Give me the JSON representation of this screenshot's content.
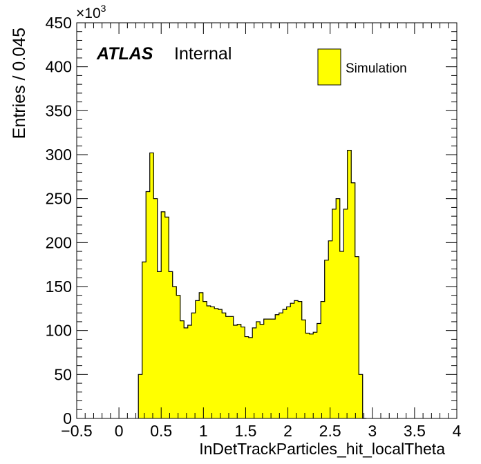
{
  "chart_data": {
    "type": "bar",
    "xlabel": "InDetTrackParticles_hit_localTheta",
    "ylabel": "Entries / 0.045",
    "y_multiplier": "×10",
    "y_multiplier_exp": "3",
    "xlim": [
      -0.5,
      4.0
    ],
    "ylim": [
      0,
      450
    ],
    "bin_width": 0.045,
    "x_ticks": [
      -0.5,
      0,
      0.5,
      1,
      1.5,
      2,
      2.5,
      3,
      3.5,
      4
    ],
    "x_tick_labels": [
      "−0.5",
      "0",
      "0.5",
      "1",
      "1.5",
      "2",
      "2.5",
      "3",
      "3.5",
      "4"
    ],
    "y_ticks": [
      0,
      50,
      100,
      150,
      200,
      250,
      300,
      350,
      400,
      450
    ],
    "y_tick_labels": [
      "0",
      "50",
      "100",
      "150",
      "200",
      "250",
      "300",
      "350",
      "400",
      "450"
    ],
    "grid": false,
    "legend_position": "top-right",
    "series": [
      {
        "name": "Simulation",
        "color": "#ffff00",
        "edge_color": "#000000",
        "bin_starts": [
          0.23,
          0.275,
          0.32,
          0.365,
          0.41,
          0.455,
          0.5,
          0.545,
          0.59,
          0.635,
          0.68,
          0.725,
          0.77,
          0.815,
          0.86,
          0.905,
          0.95,
          0.995,
          1.04,
          1.085,
          1.13,
          1.175,
          1.22,
          1.265,
          1.31,
          1.355,
          1.4,
          1.445,
          1.49,
          1.535,
          1.58,
          1.625,
          1.67,
          1.715,
          1.76,
          1.805,
          1.85,
          1.895,
          1.94,
          1.985,
          2.03,
          2.075,
          2.12,
          2.165,
          2.21,
          2.255,
          2.3,
          2.345,
          2.39,
          2.435,
          2.48,
          2.525,
          2.57,
          2.615,
          2.66,
          2.705,
          2.75,
          2.795,
          2.84,
          2.885
        ],
        "values": [
          50,
          178,
          258,
          302,
          250,
          167,
          235,
          229,
          167,
          150,
          140,
          111,
          103,
          106,
          120,
          134,
          143,
          133,
          128,
          127,
          125,
          124,
          120,
          116,
          116,
          106,
          107,
          104,
          93,
          92,
          103,
          110,
          107,
          113,
          113,
          113,
          118,
          120,
          124,
          127,
          131,
          134,
          133,
          112,
          97,
          96,
          98,
          108,
          133,
          180,
          202,
          238,
          250,
          190,
          238,
          305,
          268,
          184,
          50,
          0
        ]
      }
    ]
  },
  "labels": {
    "atlas": "ATLAS",
    "internal": "Internal",
    "legend_entry": "Simulation"
  }
}
